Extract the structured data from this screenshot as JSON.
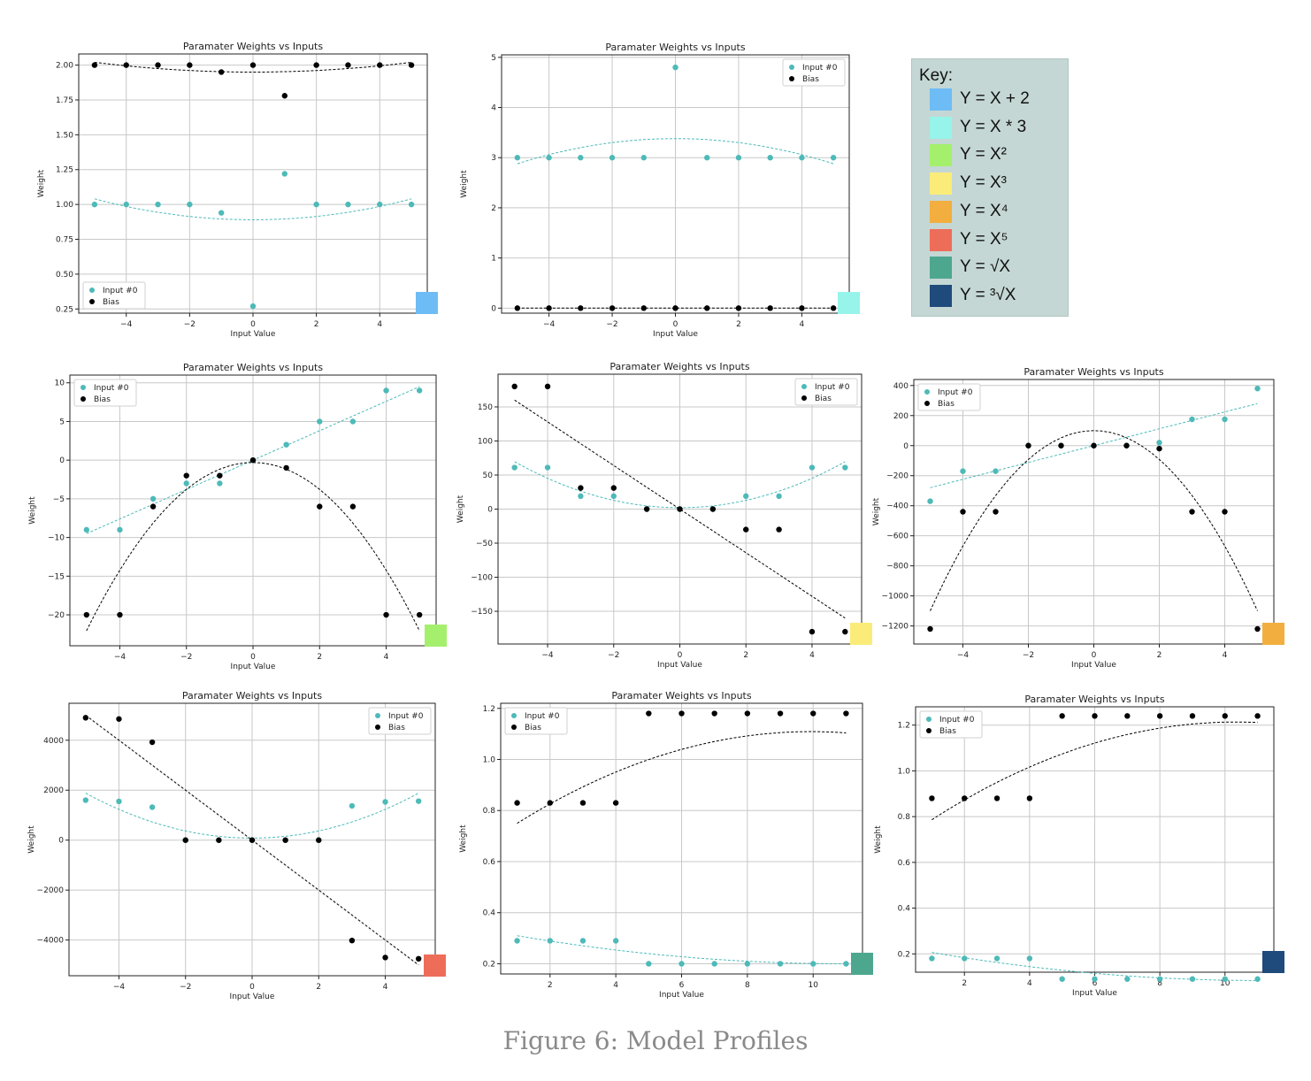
{
  "caption": "Figure 6: Model Profiles",
  "key": {
    "title": "Key:",
    "items": [
      {
        "label": "Y = X + 2",
        "color": "#6ebcf5"
      },
      {
        "label": "Y = X * 3",
        "color": "#97f4ea"
      },
      {
        "label": "Y = X²",
        "color": "#a4f06c"
      },
      {
        "label": "Y = X³",
        "color": "#fbec7a"
      },
      {
        "label": "Y = X⁴",
        "color": "#f2ae3e"
      },
      {
        "label": "Y = X⁵",
        "color": "#ee6d59"
      },
      {
        "label": "Y = √X",
        "color": "#4da78f"
      },
      {
        "label": "Y = ³√X",
        "color": "#1f4a7c"
      }
    ]
  },
  "styles": {
    "input_color": "#4dbab8",
    "bias_color": "#000000"
  },
  "chart_data": [
    {
      "type": "scatter",
      "title": "Paramater Weights vs Inputs",
      "xlabel": "Input Value",
      "ylabel": "Weight",
      "xlim": [
        -5.5,
        5.5
      ],
      "ylim": [
        0.22,
        2.08
      ],
      "xticks": [
        -4,
        -2,
        0,
        2,
        4
      ],
      "xtick_labels": [
        "−4",
        "−2",
        "0",
        "2",
        "4"
      ],
      "yticks": [
        0.25,
        0.5,
        0.75,
        1.0,
        1.25,
        1.5,
        1.75,
        2.0
      ],
      "ytick_labels": [
        "0.25",
        "0.50",
        "0.75",
        "1.00",
        "1.25",
        "1.50",
        "1.75",
        "2.00"
      ],
      "legend": "bottom-left",
      "key_color": "#6ebcf5",
      "series": [
        {
          "name": "Input #0",
          "x": [
            -5,
            -4,
            -3,
            -2,
            -1,
            0,
            1,
            2,
            3,
            4,
            5
          ],
          "y": [
            1.0,
            1.0,
            1.0,
            1.0,
            0.94,
            0.27,
            1.22,
            1.0,
            1.0,
            1.0,
            1.0
          ],
          "fit": [
            0.006,
            0,
            0.89
          ]
        },
        {
          "name": "Bias",
          "x": [
            -5,
            -4,
            -3,
            -2,
            -1,
            0,
            1,
            2,
            3,
            4,
            5
          ],
          "y": [
            2.0,
            2.0,
            2.0,
            2.0,
            1.95,
            2.0,
            1.78,
            2.0,
            2.0,
            2.0,
            2.0
          ],
          "fit": [
            0.0028,
            0,
            1.95
          ]
        }
      ]
    },
    {
      "type": "scatter",
      "title": "Paramater Weights vs Inputs",
      "xlabel": "Input Value",
      "ylabel": "Weight",
      "xlim": [
        -5.5,
        5.5
      ],
      "ylim": [
        -0.1,
        5.05
      ],
      "xticks": [
        -4,
        -2,
        0,
        2,
        4
      ],
      "xtick_labels": [
        "−4",
        "−2",
        "0",
        "2",
        "4"
      ],
      "yticks": [
        0,
        1,
        2,
        3,
        4,
        5
      ],
      "ytick_labels": [
        "0",
        "1",
        "2",
        "3",
        "4",
        "5"
      ],
      "legend": "top-right",
      "key_color": "#97f4ea",
      "series": [
        {
          "name": "Input #0",
          "x": [
            -5,
            -4,
            -3,
            -2,
            -1,
            0,
            1,
            2,
            3,
            4,
            5
          ],
          "y": [
            3,
            3,
            3,
            3,
            3,
            4.8,
            3,
            3,
            3,
            3,
            3
          ],
          "fit": [
            -0.02,
            0,
            3.38
          ]
        },
        {
          "name": "Bias",
          "x": [
            -5,
            -4,
            -3,
            -2,
            -1,
            0,
            1,
            2,
            3,
            4,
            5
          ],
          "y": [
            0,
            0,
            0,
            0,
            0,
            0,
            0,
            0,
            0,
            0,
            0
          ],
          "fit": [
            0,
            0,
            0
          ]
        }
      ]
    },
    {
      "type": "scatter",
      "title": "Paramater Weights vs Inputs",
      "xlabel": "Input Value",
      "ylabel": "Weight",
      "xlim": [
        -5.5,
        5.5
      ],
      "ylim": [
        -24,
        11
      ],
      "xticks": [
        -4,
        -2,
        0,
        2,
        4
      ],
      "xtick_labels": [
        "−4",
        "−2",
        "0",
        "2",
        "4"
      ],
      "yticks": [
        -20,
        -15,
        -10,
        -5,
        0,
        5,
        10
      ],
      "ytick_labels": [
        "−20",
        "−15",
        "−10",
        "−5",
        "0",
        "5",
        "10"
      ],
      "legend": "top-left",
      "key_color": "#a4f06c",
      "series": [
        {
          "name": "Input #0",
          "x": [
            -5,
            -4,
            -3,
            -2,
            -1,
            0,
            1,
            2,
            3,
            4,
            5
          ],
          "y": [
            -9,
            -9,
            -5,
            -3,
            -3,
            0,
            2,
            5,
            5,
            9,
            9
          ],
          "fit": [
            0,
            1.9,
            0
          ]
        },
        {
          "name": "Bias",
          "x": [
            -5,
            -4,
            -3,
            -2,
            -1,
            0,
            1,
            2,
            3,
            4,
            5
          ],
          "y": [
            -20,
            -20,
            -6,
            -2,
            -2,
            0,
            -1,
            -6,
            -6,
            -20,
            -20
          ],
          "fit": [
            -0.87,
            0,
            -0.3
          ]
        }
      ]
    },
    {
      "type": "scatter",
      "title": "Paramater Weights vs Inputs",
      "xlabel": "Input Value",
      "ylabel": "Weight",
      "xlim": [
        -5.5,
        5.5
      ],
      "ylim": [
        -198,
        198
      ],
      "xticks": [
        -4,
        -2,
        0,
        2,
        4
      ],
      "xtick_labels": [
        "−4",
        "−2",
        "0",
        "2",
        "4"
      ],
      "yticks": [
        -150,
        -100,
        -50,
        0,
        50,
        100,
        150
      ],
      "ytick_labels": [
        "−150",
        "−100",
        "−50",
        "0",
        "50",
        "100",
        "150"
      ],
      "legend": "top-right",
      "key_color": "#fbec7a",
      "series": [
        {
          "name": "Input #0",
          "x": [
            -5,
            -4,
            -3,
            -2,
            -1,
            0,
            1,
            2,
            3,
            4,
            5
          ],
          "y": [
            61,
            61,
            19,
            19,
            0,
            0,
            0,
            19,
            19,
            61,
            61
          ],
          "fit": [
            2.7,
            0,
            2
          ]
        },
        {
          "name": "Bias",
          "x": [
            -5,
            -4,
            -3,
            -2,
            -1,
            0,
            1,
            2,
            3,
            4,
            5
          ],
          "y": [
            180,
            180,
            31,
            31,
            0,
            0,
            0,
            -30,
            -30,
            -180,
            -180
          ],
          "fit": [
            0,
            -32,
            0
          ]
        }
      ]
    },
    {
      "type": "scatter",
      "title": "Paramater Weights vs Inputs",
      "xlabel": "Input Value",
      "ylabel": "Weight",
      "xlim": [
        -5.5,
        5.5
      ],
      "ylim": [
        -1320,
        440
      ],
      "xticks": [
        -4,
        -2,
        0,
        2,
        4
      ],
      "xtick_labels": [
        "−4",
        "−2",
        "0",
        "2",
        "4"
      ],
      "yticks": [
        -1200,
        -1000,
        -800,
        -600,
        -400,
        -200,
        0,
        200,
        400
      ],
      "ytick_labels": [
        "−1200",
        "−1000",
        "−800",
        "−600",
        "−400",
        "−200",
        "0",
        "200",
        "400"
      ],
      "legend": "top-left",
      "key_color": "#f2ae3e",
      "series": [
        {
          "name": "Input #0",
          "x": [
            -5,
            -4,
            -3,
            -2,
            -1,
            0,
            1,
            2,
            3,
            4,
            5
          ],
          "y": [
            -370,
            -170,
            -170,
            0,
            0,
            0,
            0,
            20,
            175,
            175,
            380
          ],
          "fit": [
            0,
            56,
            0
          ]
        },
        {
          "name": "Bias",
          "x": [
            -5,
            -4,
            -3,
            -2,
            -1,
            0,
            1,
            2,
            3,
            4,
            5
          ],
          "y": [
            -1220,
            -440,
            -440,
            0,
            0,
            0,
            0,
            -20,
            -440,
            -440,
            -1220
          ],
          "fit": [
            -48,
            0,
            100
          ]
        }
      ]
    },
    {
      "type": "scatter",
      "title": "Paramater Weights vs Inputs",
      "xlabel": "Input Value",
      "ylabel": "Weight",
      "xlim": [
        -5.5,
        5.5
      ],
      "ylim": [
        -5430,
        5480
      ],
      "xticks": [
        -4,
        -2,
        0,
        2,
        4
      ],
      "xtick_labels": [
        "−4",
        "−2",
        "0",
        "2",
        "4"
      ],
      "yticks": [
        -4000,
        -2000,
        0,
        2000,
        4000
      ],
      "ytick_labels": [
        "−4000",
        "−2000",
        "0",
        "2000",
        "4000"
      ],
      "legend": "top-right",
      "key_color": "#ee6d59",
      "series": [
        {
          "name": "Input #0",
          "x": [
            -5,
            -4,
            -3,
            -2,
            -1,
            0,
            1,
            2,
            3,
            4,
            5
          ],
          "y": [
            1600,
            1550,
            1320,
            0,
            0,
            0,
            0,
            0,
            1370,
            1530,
            1560
          ],
          "fit": [
            72,
            0,
            80
          ]
        },
        {
          "name": "Bias",
          "x": [
            -5,
            -4,
            -3,
            -2,
            -1,
            0,
            1,
            2,
            3,
            4,
            5
          ],
          "y": [
            4900,
            4850,
            3920,
            0,
            0,
            0,
            0,
            0,
            -4020,
            -4700,
            -4750
          ],
          "fit": [
            0,
            -1000,
            0
          ]
        }
      ]
    },
    {
      "type": "scatter",
      "title": "Paramater Weights vs Inputs",
      "xlabel": "Input Value",
      "ylabel": "Weight",
      "xlim": [
        0.5,
        11.5
      ],
      "ylim": [
        0.16,
        1.22
      ],
      "xticks": [
        2,
        4,
        6,
        8,
        10
      ],
      "xtick_labels": [
        "2",
        "4",
        "6",
        "8",
        "10"
      ],
      "yticks": [
        0.2,
        0.4,
        0.6,
        0.8,
        1.0,
        1.2
      ],
      "ytick_labels": [
        "0.2",
        "0.4",
        "0.6",
        "0.8",
        "1.0",
        "1.2"
      ],
      "legend": "top-left",
      "key_color": "#4da78f",
      "series": [
        {
          "name": "Input #0",
          "x": [
            1,
            2,
            3,
            4,
            5,
            6,
            7,
            8,
            9,
            10,
            11
          ],
          "y": [
            0.29,
            0.29,
            0.29,
            0.29,
            0.2,
            0.2,
            0.2,
            0.2,
            0.2,
            0.2,
            0.2
          ],
          "fit": [
            0.0011,
            -0.0242,
            0.333
          ]
        },
        {
          "name": "Bias",
          "x": [
            1,
            2,
            3,
            4,
            5,
            6,
            7,
            8,
            9,
            10,
            11
          ],
          "y": [
            0.83,
            0.83,
            0.83,
            0.83,
            1.18,
            1.18,
            1.18,
            1.18,
            1.18,
            1.18,
            1.18
          ],
          "fit": [
            -0.0045,
            0.0894,
            0.665
          ]
        }
      ]
    },
    {
      "type": "scatter",
      "title": "Paramater Weights vs Inputs",
      "xlabel": "Input Value",
      "ylabel": "Weight",
      "xlim": [
        0.5,
        11.5
      ],
      "ylim": [
        0.12,
        1.28
      ],
      "xticks": [
        2,
        4,
        6,
        8,
        10
      ],
      "xtick_labels": [
        "2",
        "4",
        "6",
        "8",
        "10"
      ],
      "yticks": [
        0.2,
        0.4,
        0.6,
        0.8,
        1.0,
        1.2
      ],
      "ytick_labels": [
        "0.2",
        "0.4",
        "0.6",
        "0.8",
        "1.0",
        "1.2"
      ],
      "legend": "top-left",
      "key_color": "#1f4a7c",
      "series": [
        {
          "name": "Input #0",
          "x": [
            1,
            2,
            3,
            4,
            5,
            6,
            7,
            8,
            9,
            10,
            11
          ],
          "y": [
            0.18,
            0.18,
            0.18,
            0.18,
            0.09,
            0.09,
            0.09,
            0.09,
            0.09,
            0.09,
            0.09
          ],
          "fit": [
            0.0012,
            -0.0267,
            0.232
          ]
        },
        {
          "name": "Bias",
          "x": [
            1,
            2,
            3,
            4,
            5,
            6,
            7,
            8,
            9,
            10,
            11
          ],
          "y": [
            0.88,
            0.88,
            0.88,
            0.88,
            1.24,
            1.24,
            1.24,
            1.24,
            1.24,
            1.24,
            1.24
          ],
          "fit": [
            -0.0049,
            0.1013,
            0.69
          ]
        }
      ]
    }
  ]
}
